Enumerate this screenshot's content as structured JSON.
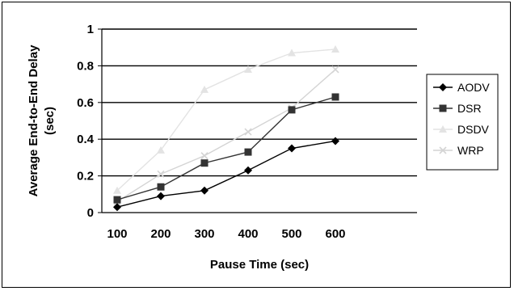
{
  "chart_data": {
    "type": "line",
    "title": "",
    "xlabel": "Pause Time (sec)",
    "ylabel_lines": [
      "Average End-to-End Delay",
      "(sec)"
    ],
    "categories": [
      "100",
      "200",
      "300",
      "400",
      "500",
      "600"
    ],
    "yticks": [
      "0",
      "0.2",
      "0.4",
      "0.6",
      "0.8",
      "1"
    ],
    "ylim": [
      0,
      1
    ],
    "grid": "horizontal",
    "legend_position": "right",
    "series": [
      {
        "name": "AODV",
        "color": "#000000",
        "marker": "diamond",
        "values": [
          0.03,
          0.09,
          0.12,
          0.23,
          0.35,
          0.39
        ]
      },
      {
        "name": "DSR",
        "color": "#333333",
        "marker": "square",
        "values": [
          0.07,
          0.14,
          0.27,
          0.33,
          0.56,
          0.63
        ]
      },
      {
        "name": "DSDV",
        "color": "#e3e3e3",
        "marker": "triangle",
        "values": [
          0.12,
          0.34,
          0.67,
          0.78,
          0.87,
          0.89
        ]
      },
      {
        "name": "WRP",
        "color": "#d4d4d4",
        "marker": "x",
        "values": [
          0.06,
          0.21,
          0.31,
          0.44,
          0.57,
          0.78
        ]
      }
    ]
  }
}
